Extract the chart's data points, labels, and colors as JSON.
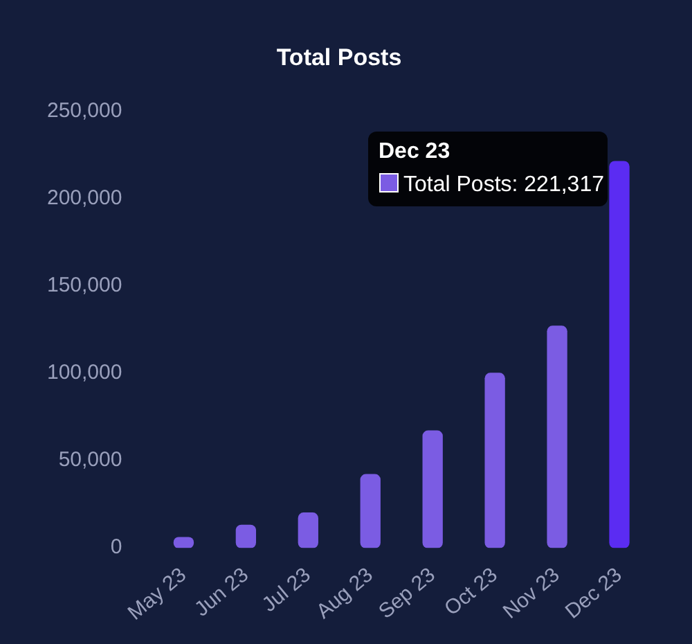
{
  "chart_data": {
    "type": "bar",
    "title": "Total Posts",
    "categories": [
      "May 23",
      "Jun 23",
      "Jul 23",
      "Aug 23",
      "Sep 23",
      "Oct 23",
      "Nov 23",
      "Dec 23"
    ],
    "series": [
      {
        "color": "#7b5ce3",
        "colors": [
          "#7b5ce3",
          "#7b5ce3",
          "#7b5ce3",
          "#7b5ce3",
          "#7b5ce3",
          "#7b5ce3",
          "#7b5ce3",
          "#5b2cf2"
        ],
        "values": [
          6000,
          13000,
          20000,
          42000,
          67000,
          100000,
          127000,
          221317
        ]
      }
    ],
    "ylim": [
      0,
      250000
    ],
    "yticks": [
      0,
      {
        "value": 50000,
        "label": "50,000"
      },
      {
        "value": 100000,
        "label": "100,000"
      },
      {
        "value": 150000,
        "label": "150,000"
      },
      {
        "value": 200000,
        "label": "200,000"
      },
      {
        "value": 250000,
        "label": "250,000"
      }
    ],
    "grid": false,
    "legend": false,
    "annotations": [
      "Dec 23",
      {
        "text": "Total Posts: 221,317",
        "x": "Dec 23",
        "y": 221317
      }
    ]
  }
}
